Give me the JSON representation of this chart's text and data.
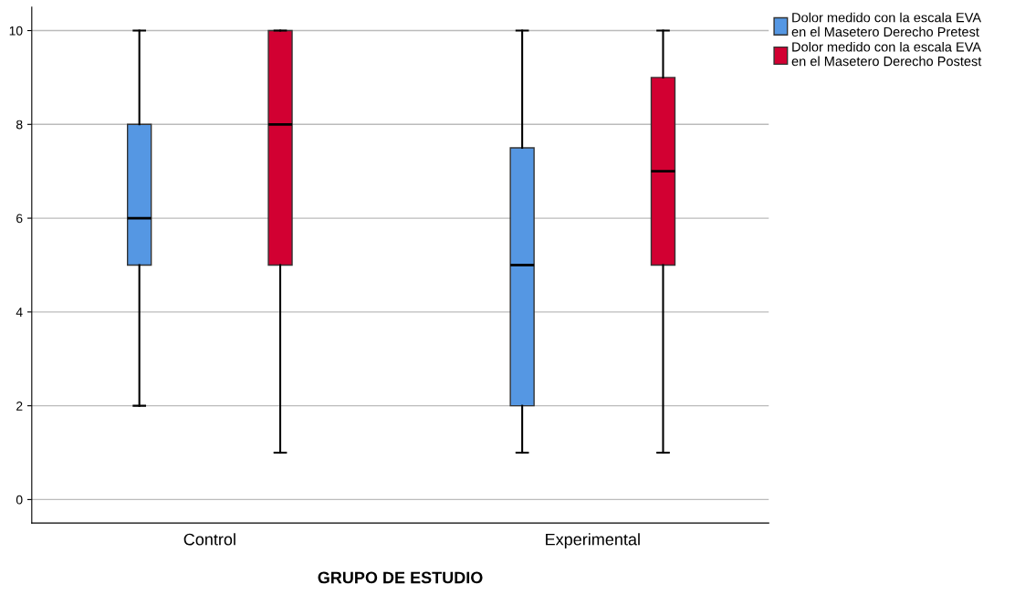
{
  "chart_data": {
    "type": "box",
    "xlabel": "GRUPO DE ESTUDIO",
    "categories": [
      "Control",
      "Experimental"
    ],
    "ylim": [
      -0.5,
      10.5
    ],
    "yticks": [
      0,
      2,
      4,
      6,
      8,
      10
    ],
    "grid": "y",
    "legend": "top right",
    "series": [
      {
        "name": "Dolor medido con la escala EVA\nen el Masetero Derecho Pretest",
        "color": "#5597e3",
        "boxes": [
          {
            "low": 2,
            "q1": 5,
            "median": 6,
            "q3": 8,
            "high": 10
          },
          {
            "low": 1,
            "q1": 2,
            "median": 5,
            "q3": 7.5,
            "high": 10
          }
        ]
      },
      {
        "name": "Dolor medido con la escala EVA\nen el Masetero Derecho Postest",
        "color": "#d20032",
        "boxes": [
          {
            "low": 1,
            "q1": 5,
            "median": 8,
            "q3": 10,
            "high": 10
          },
          {
            "low": 1,
            "q1": 5,
            "median": 7,
            "q3": 9,
            "high": 10
          }
        ]
      }
    ]
  }
}
